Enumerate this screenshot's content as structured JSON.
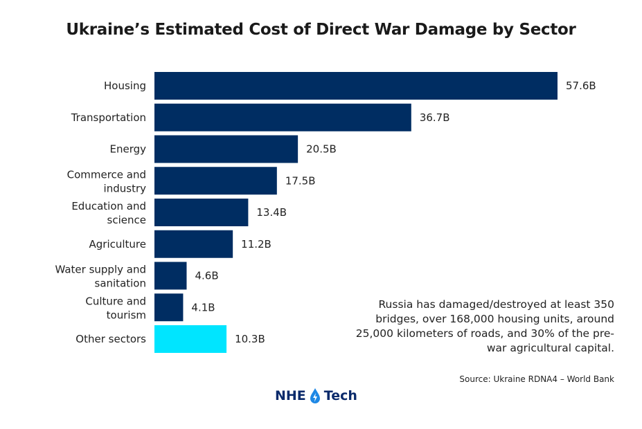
{
  "chart_data": {
    "type": "bar",
    "orientation": "horizontal",
    "title": "Ukraine’s Estimated Cost of Direct War Damage by Sector",
    "categories": [
      [
        "Housing"
      ],
      [
        "Transportation"
      ],
      [
        "Energy"
      ],
      [
        "Commerce and",
        "industry"
      ],
      [
        "Education and",
        "science"
      ],
      [
        "Agriculture"
      ],
      [
        "Water supply and",
        "sanitation"
      ],
      [
        "Culture and",
        "tourism"
      ],
      [
        "Other sectors"
      ]
    ],
    "values": [
      57.6,
      36.7,
      20.5,
      17.5,
      13.4,
      11.2,
      4.6,
      4.1,
      10.3
    ],
    "data_labels": [
      "57.6B",
      "36.7B",
      "20.5B",
      "17.5B",
      "13.4B",
      "11.2B",
      "4.6B",
      "4.1B",
      "10.3B"
    ],
    "unit": "B",
    "colors": [
      "#002d62",
      "#002d62",
      "#002d62",
      "#002d62",
      "#002d62",
      "#002d62",
      "#002d62",
      "#002d62",
      "#00e5ff"
    ],
    "xlim": [
      0,
      57.6
    ],
    "grid": false,
    "axes_visible": false
  },
  "note": "Russia has damaged/destroyed at least 350 bridges, over 168,000 housing units, around 25,000 kilometers of roads, and 30% of the pre-war agricultural capital.",
  "source": "Source: Ukraine RDNA4 – World Bank",
  "logo": {
    "left": "NHE",
    "right": "Tech",
    "icon": "water-drop-lightning-icon"
  }
}
